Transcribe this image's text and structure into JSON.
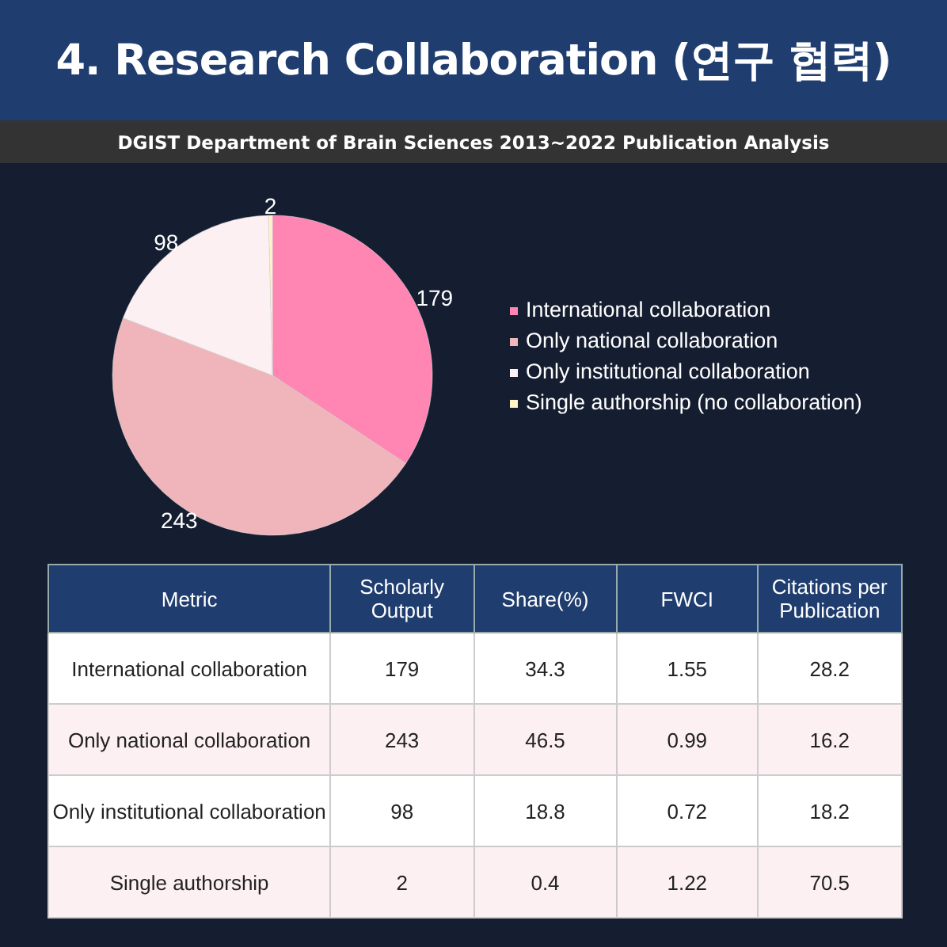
{
  "chart_data": [
    {
      "type": "pie",
      "title": "4. Research Collaboration (연구 협력)",
      "subtitle": "DGIST Department of Brain Sciences 2013~2022 Publication Analysis",
      "categories": [
        "International collaboration",
        "Only national collaboration",
        "Only institutional collaboration",
        "Single authorship (no collaboration)"
      ],
      "values": [
        179,
        243,
        98,
        2
      ],
      "colors": [
        "#ff85b3",
        "#f0b5bb",
        "#fcf0f2",
        "#fff3c8"
      ],
      "data_labels": true,
      "legend": "right"
    },
    {
      "type": "other",
      "xlabel": "Metric",
      "categories": [
        "International collaboration",
        "Only national collaboration",
        "Only institutional collaboration",
        "Single authorship"
      ],
      "series": [
        {
          "name": "Scholarly Output",
          "values": [
            179,
            243,
            98,
            2
          ],
          "colors": [
            "#ffffff",
            "#fcf0f2",
            "#ffffff",
            "#fcf0f2"
          ]
        },
        {
          "name": "Share(%)",
          "values": [
            34.3,
            46.5,
            18.8,
            0.4
          ],
          "colors": [
            "#ffffff",
            "#fcf0f2",
            "#ffffff",
            "#fcf0f2"
          ]
        },
        {
          "name": "FWCI",
          "values": [
            1.55,
            0.99,
            0.72,
            1.22
          ],
          "colors": [
            "#ffffff",
            "#fcf0f2",
            "#ffffff",
            "#fcf0f2"
          ]
        },
        {
          "name": "Citations per Publication",
          "values": [
            28.2,
            16.2,
            18.2,
            70.5
          ],
          "colors": [
            "#ffffff",
            "#fcf0f2",
            "#ffffff",
            "#fcf0f2"
          ]
        }
      ],
      "data_labels": true
    }
  ]
}
